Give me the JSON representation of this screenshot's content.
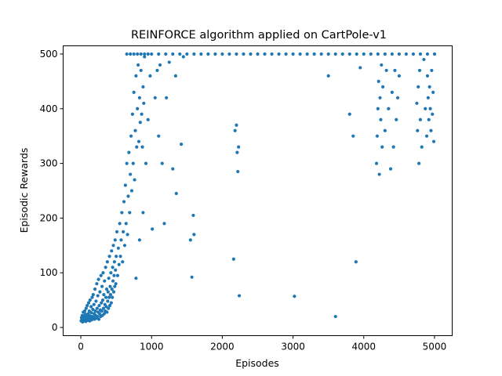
{
  "chart_data": {
    "type": "scatter",
    "title": "REINFORCE algorithm applied on CartPole-v1",
    "xlabel": "Episodes",
    "ylabel": "Episodic Rewards",
    "xlim": [
      -250,
      5250
    ],
    "ylim": [
      -15,
      515
    ],
    "x_ticks": [
      0,
      1000,
      2000,
      3000,
      4000,
      5000
    ],
    "y_ticks": [
      0,
      100,
      200,
      300,
      400,
      500
    ],
    "grid": false,
    "legend": "none",
    "marker_color": "#1f77b4",
    "series": [
      {
        "points": [
          [
            5,
            12
          ],
          [
            10,
            18
          ],
          [
            15,
            15
          ],
          [
            20,
            22
          ],
          [
            25,
            10
          ],
          [
            30,
            14
          ],
          [
            35,
            28
          ],
          [
            40,
            16
          ],
          [
            45,
            12
          ],
          [
            50,
            20
          ],
          [
            55,
            30
          ],
          [
            60,
            14
          ],
          [
            65,
            24
          ],
          [
            70,
            11
          ],
          [
            75,
            35
          ],
          [
            80,
            19
          ],
          [
            85,
            15
          ],
          [
            90,
            40
          ],
          [
            95,
            22
          ],
          [
            100,
            13
          ],
          [
            105,
            25
          ],
          [
            110,
            45
          ],
          [
            115,
            18
          ],
          [
            120,
            30
          ],
          [
            125,
            12
          ],
          [
            130,
            50
          ],
          [
            135,
            21
          ],
          [
            140,
            16
          ],
          [
            145,
            38
          ],
          [
            150,
            27
          ],
          [
            155,
            14
          ],
          [
            160,
            55
          ],
          [
            165,
            20
          ],
          [
            170,
            33
          ],
          [
            175,
            60
          ],
          [
            180,
            18
          ],
          [
            185,
            42
          ],
          [
            190,
            25
          ],
          [
            195,
            15
          ],
          [
            200,
            70
          ],
          [
            205,
            30
          ],
          [
            210,
            22
          ],
          [
            215,
            48
          ],
          [
            220,
            17
          ],
          [
            225,
            80
          ],
          [
            230,
            35
          ],
          [
            235,
            20
          ],
          [
            240,
            58
          ],
          [
            245,
            28
          ],
          [
            250,
            88
          ],
          [
            255,
            15
          ],
          [
            260,
            40
          ],
          [
            265,
            25
          ],
          [
            270,
            65
          ],
          [
            275,
            32
          ],
          [
            280,
            20
          ],
          [
            285,
            95
          ],
          [
            290,
            45
          ],
          [
            295,
            30
          ],
          [
            300,
            75
          ],
          [
            305,
            22
          ],
          [
            310,
            50
          ],
          [
            315,
            100
          ],
          [
            320,
            35
          ],
          [
            325,
            60
          ],
          [
            330,
            25
          ],
          [
            335,
            85
          ],
          [
            340,
            42
          ],
          [
            345,
            30
          ],
          [
            350,
            110
          ],
          [
            355,
            55
          ],
          [
            360,
            38
          ],
          [
            365,
            70
          ],
          [
            370,
            28
          ],
          [
            375,
            120
          ],
          [
            380,
            48
          ],
          [
            385,
            65
          ],
          [
            390,
            35
          ],
          [
            395,
            90
          ],
          [
            400,
            55
          ],
          [
            405,
            130
          ],
          [
            410,
            40
          ],
          [
            415,
            75
          ],
          [
            420,
            60
          ],
          [
            425,
            100
          ],
          [
            430,
            45
          ],
          [
            435,
            140
          ],
          [
            440,
            70
          ],
          [
            445,
            55
          ],
          [
            450,
            110
          ],
          [
            455,
            85
          ],
          [
            460,
            150
          ],
          [
            465,
            65
          ],
          [
            470,
            95
          ],
          [
            475,
            120
          ],
          [
            480,
            75
          ],
          [
            485,
            160
          ],
          [
            490,
            105
          ],
          [
            495,
            80
          ],
          [
            500,
            130
          ],
          [
            510,
            175
          ],
          [
            520,
            95
          ],
          [
            530,
            145
          ],
          [
            540,
            115
          ],
          [
            550,
            190
          ],
          [
            560,
            130
          ],
          [
            570,
            160
          ],
          [
            580,
            210
          ],
          [
            590,
            120
          ],
          [
            600,
            175
          ],
          [
            610,
            230
          ],
          [
            620,
            150
          ],
          [
            630,
            260
          ],
          [
            640,
            190
          ],
          [
            650,
            300
          ],
          [
            660,
            170
          ],
          [
            670,
            240
          ],
          [
            680,
            320
          ],
          [
            690,
            210
          ],
          [
            700,
            280
          ],
          [
            710,
            350
          ],
          [
            720,
            250
          ],
          [
            730,
            390
          ],
          [
            740,
            300
          ],
          [
            750,
            430
          ],
          [
            760,
            270
          ],
          [
            770,
            360
          ],
          [
            780,
            460
          ],
          [
            790,
            330
          ],
          [
            800,
            400
          ],
          [
            810,
            480
          ],
          [
            820,
            340
          ],
          [
            830,
            420
          ],
          [
            840,
            375
          ],
          [
            850,
            470
          ],
          [
            860,
            390
          ],
          [
            870,
            330
          ],
          [
            880,
            440
          ],
          [
            890,
            410
          ],
          [
            900,
            495
          ],
          [
            650,
            500
          ],
          [
            700,
            500
          ],
          [
            750,
            500
          ],
          [
            800,
            500
          ],
          [
            850,
            500
          ],
          [
            900,
            500
          ],
          [
            950,
            500
          ],
          [
            1000,
            500
          ],
          [
            1100,
            500
          ],
          [
            1200,
            500
          ],
          [
            1300,
            500
          ],
          [
            1400,
            500
          ],
          [
            1500,
            500
          ],
          [
            1600,
            500
          ],
          [
            1700,
            500
          ],
          [
            1800,
            500
          ],
          [
            1900,
            500
          ],
          [
            2000,
            500
          ],
          [
            2100,
            500
          ],
          [
            2200,
            500
          ],
          [
            2300,
            500
          ],
          [
            2400,
            500
          ],
          [
            2500,
            500
          ],
          [
            2600,
            500
          ],
          [
            2700,
            500
          ],
          [
            2800,
            500
          ],
          [
            2900,
            500
          ],
          [
            3000,
            500
          ],
          [
            3100,
            500
          ],
          [
            3200,
            500
          ],
          [
            3300,
            500
          ],
          [
            3400,
            500
          ],
          [
            3500,
            500
          ],
          [
            3600,
            500
          ],
          [
            3700,
            500
          ],
          [
            3800,
            500
          ],
          [
            3900,
            500
          ],
          [
            4000,
            500
          ],
          [
            4100,
            500
          ],
          [
            4200,
            500
          ],
          [
            4300,
            500
          ],
          [
            4400,
            500
          ],
          [
            4500,
            500
          ],
          [
            4600,
            500
          ],
          [
            4700,
            500
          ],
          [
            4800,
            500
          ],
          [
            4900,
            500
          ],
          [
            5000,
            500
          ],
          [
            780,
            90
          ],
          [
            830,
            160
          ],
          [
            880,
            210
          ],
          [
            920,
            300
          ],
          [
            950,
            380
          ],
          [
            980,
            460
          ],
          [
            1010,
            180
          ],
          [
            1050,
            420
          ],
          [
            1080,
            470
          ],
          [
            1100,
            350
          ],
          [
            1120,
            480
          ],
          [
            1150,
            300
          ],
          [
            1180,
            190
          ],
          [
            1210,
            420
          ],
          [
            1250,
            485
          ],
          [
            1300,
            290
          ],
          [
            1340,
            460
          ],
          [
            1350,
            245
          ],
          [
            1420,
            335
          ],
          [
            1450,
            495
          ],
          [
            1550,
            160
          ],
          [
            1570,
            92
          ],
          [
            1590,
            205
          ],
          [
            1600,
            170
          ],
          [
            2160,
            125
          ],
          [
            2180,
            360
          ],
          [
            2200,
            370
          ],
          [
            2210,
            320
          ],
          [
            2220,
            285
          ],
          [
            2230,
            330
          ],
          [
            2240,
            58
          ],
          [
            3020,
            57
          ],
          [
            3500,
            460
          ],
          [
            3600,
            20
          ],
          [
            3800,
            390
          ],
          [
            3850,
            350
          ],
          [
            3890,
            120
          ],
          [
            3950,
            475
          ],
          [
            4180,
            300
          ],
          [
            4190,
            350
          ],
          [
            4200,
            400
          ],
          [
            4210,
            450
          ],
          [
            4220,
            280
          ],
          [
            4230,
            420
          ],
          [
            4240,
            380
          ],
          [
            4250,
            480
          ],
          [
            4260,
            330
          ],
          [
            4270,
            440
          ],
          [
            4300,
            360
          ],
          [
            4320,
            470
          ],
          [
            4350,
            400
          ],
          [
            4380,
            290
          ],
          [
            4400,
            430
          ],
          [
            4420,
            330
          ],
          [
            4440,
            470
          ],
          [
            4460,
            380
          ],
          [
            4480,
            420
          ],
          [
            4500,
            460
          ],
          [
            4750,
            410
          ],
          [
            4760,
            360
          ],
          [
            4770,
            440
          ],
          [
            4780,
            300
          ],
          [
            4790,
            470
          ],
          [
            4800,
            380
          ],
          [
            4820,
            330
          ],
          [
            4850,
            490
          ],
          [
            4870,
            400
          ],
          [
            4890,
            350
          ],
          [
            4900,
            460
          ],
          [
            4910,
            420
          ],
          [
            4920,
            380
          ],
          [
            4930,
            440
          ],
          [
            4940,
            400
          ],
          [
            4950,
            360
          ],
          [
            4960,
            470
          ],
          [
            4970,
            390
          ],
          [
            4980,
            430
          ],
          [
            4990,
            340
          ]
        ]
      }
    ]
  }
}
